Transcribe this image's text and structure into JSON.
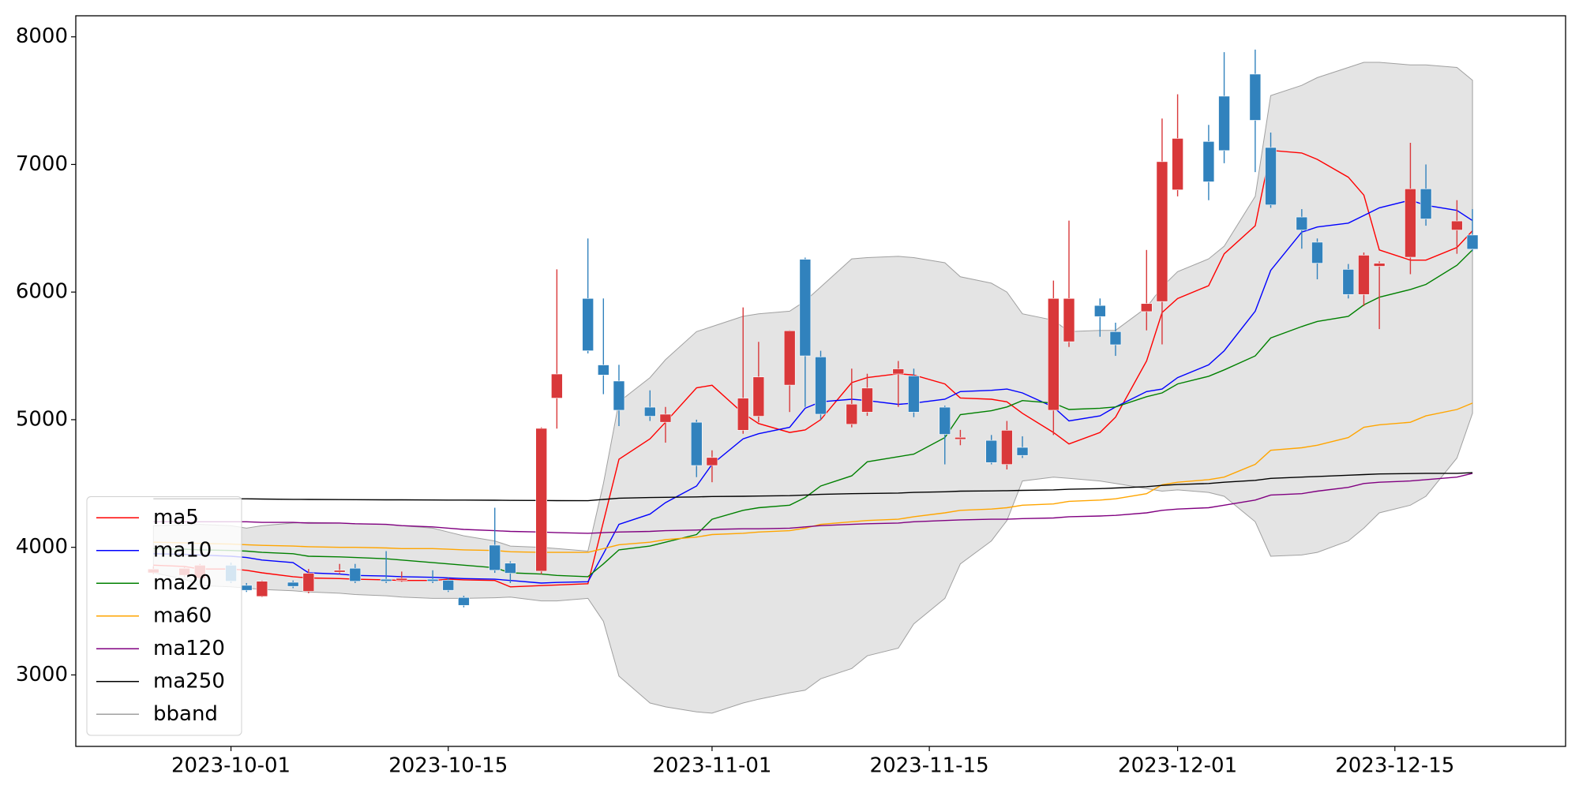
{
  "chart_data": {
    "type": "candlestick",
    "x": [
      "2023-09-26",
      "2023-09-28",
      "2023-09-29",
      "2023-10-01",
      "2023-10-02",
      "2023-10-03",
      "2023-10-05",
      "2023-10-06",
      "2023-10-08",
      "2023-10-09",
      "2023-10-11",
      "2023-10-12",
      "2023-10-14",
      "2023-10-15",
      "2023-10-16",
      "2023-10-18",
      "2023-10-19",
      "2023-10-21",
      "2023-10-22",
      "2023-10-24",
      "2023-10-25",
      "2023-10-26",
      "2023-10-28",
      "2023-10-29",
      "2023-10-31",
      "2023-11-01",
      "2023-11-03",
      "2023-11-04",
      "2023-11-06",
      "2023-11-07",
      "2023-11-08",
      "2023-11-10",
      "2023-11-11",
      "2023-11-13",
      "2023-11-14",
      "2023-11-16",
      "2023-11-17",
      "2023-11-19",
      "2023-11-20",
      "2023-11-21",
      "2023-11-23",
      "2023-11-24",
      "2023-11-26",
      "2023-11-27",
      "2023-11-29",
      "2023-11-30",
      "2023-12-01",
      "2023-12-03",
      "2023-12-04",
      "2023-12-06",
      "2023-12-07",
      "2023-12-09",
      "2023-12-10",
      "2023-12-12",
      "2023-12-13",
      "2023-12-14",
      "2023-12-16",
      "2023-12-17",
      "2023-12-19",
      "2023-12-20"
    ],
    "open": [
      3800,
      3781,
      3757,
      3860,
      3702,
      3615,
      3726,
      3655,
      3805,
      3836,
      3750,
      3742,
      3750,
      3742,
      3607,
      4017,
      3876,
      3813,
      5169,
      5950,
      5429,
      5303,
      5098,
      4980,
      4980,
      4641,
      4917,
      5027,
      5271,
      6257,
      5492,
      4964,
      5059,
      5358,
      5343,
      5098,
      4846,
      4838,
      4649,
      4783,
      5074,
      5611,
      5895,
      5690,
      5847,
      5926,
      6801,
      7180,
      7535,
      7708,
      7133,
      6588,
      6391,
      6178,
      5981,
      6202,
      6273,
      6809,
      6486,
      6447
    ],
    "high": [
      3850,
      3850,
      3870,
      3880,
      3720,
      3740,
      3740,
      3830,
      3870,
      3870,
      3970,
      3810,
      3820,
      3760,
      3620,
      4310,
      3890,
      4940,
      6178,
      6420,
      5950,
      5430,
      5230,
      5100,
      5000,
      4760,
      5880,
      5610,
      5700,
      6270,
      5540,
      5400,
      5360,
      5460,
      5400,
      5110,
      4920,
      4880,
      4990,
      4870,
      6090,
      6560,
      5950,
      5760,
      6330,
      7360,
      7550,
      7310,
      7880,
      7900,
      7250,
      6650,
      6420,
      6220,
      6310,
      6240,
      7170,
      7000,
      6720,
      6650
    ],
    "low": [
      3790,
      3770,
      3750,
      3720,
      3650,
      3610,
      3680,
      3640,
      3790,
      3720,
      3720,
      3730,
      3720,
      3650,
      3530,
      3800,
      3720,
      3790,
      4930,
      5520,
      5200,
      4950,
      4990,
      4820,
      4550,
      4510,
      4890,
      4980,
      5060,
      5100,
      5000,
      4940,
      5030,
      5100,
      5020,
      4650,
      4800,
      4650,
      4610,
      4700,
      4880,
      5570,
      5650,
      5500,
      5700,
      5590,
      6750,
      6720,
      7010,
      6940,
      6660,
      6340,
      6100,
      5950,
      5890,
      5710,
      6140,
      6520,
      6300,
      6320
    ],
    "close": [
      3830,
      3836,
      3860,
      3734,
      3663,
      3734,
      3694,
      3797,
      3820,
      3734,
      3734,
      3757,
      3734,
      3663,
      3545,
      3820,
      3797,
      4932,
      5358,
      5540,
      5350,
      5074,
      5027,
      5043,
      4641,
      4704,
      5169,
      5335,
      5697,
      5500,
      5043,
      5122,
      5248,
      5398,
      5059,
      4885,
      4862,
      4664,
      4917,
      4720,
      5950,
      5950,
      5808,
      5587,
      5910,
      7022,
      7204,
      6864,
      7109,
      7346,
      6683,
      6486,
      6226,
      5981,
      6289,
      6226,
      6809,
      6573,
      6557,
      6336
    ],
    "up_color": "#d9383a",
    "down_color": "#3182bd",
    "series": [
      {
        "name": "ma5",
        "color": "#ff0000",
        "values": [
          3860,
          3850,
          3830,
          3830,
          3820,
          3800,
          3770,
          3760,
          3755,
          3750,
          3745,
          3740,
          3740,
          3750,
          3745,
          3740,
          3690,
          3700,
          3705,
          3715,
          4200,
          4690,
          4850,
          4980,
          5250,
          5270,
          5050,
          4970,
          4900,
          4920,
          5000,
          5290,
          5330,
          5360,
          5350,
          5280,
          5170,
          5160,
          5140,
          5050,
          4900,
          4810,
          4900,
          5020,
          5460,
          5840,
          5950,
          6050,
          6300,
          6520,
          7110,
          7090,
          7040,
          6900,
          6760,
          6330,
          6250,
          6250,
          6350,
          6480
        ]
      },
      {
        "name": "ma10",
        "color": "#0000ff",
        "values": [
          3950,
          3945,
          3940,
          3930,
          3920,
          3900,
          3880,
          3800,
          3790,
          3780,
          3775,
          3770,
          3765,
          3760,
          3755,
          3750,
          3740,
          3720,
          3725,
          3730,
          3950,
          4180,
          4260,
          4350,
          4480,
          4650,
          4850,
          4890,
          4940,
          5090,
          5140,
          5160,
          5150,
          5120,
          5130,
          5160,
          5220,
          5230,
          5240,
          5210,
          5100,
          4990,
          5030,
          5100,
          5220,
          5240,
          5330,
          5430,
          5540,
          5850,
          6170,
          6470,
          6510,
          6540,
          6600,
          6660,
          6720,
          6680,
          6640,
          6560
        ]
      },
      {
        "name": "ma20",
        "color": "#008000",
        "values": [
          3990,
          3985,
          3980,
          3975,
          3970,
          3960,
          3950,
          3930,
          3925,
          3920,
          3910,
          3900,
          3880,
          3870,
          3860,
          3840,
          3800,
          3790,
          3780,
          3770,
          3870,
          3980,
          4010,
          4040,
          4100,
          4220,
          4290,
          4310,
          4330,
          4390,
          4480,
          4560,
          4670,
          4710,
          4730,
          4860,
          5040,
          5070,
          5100,
          5150,
          5130,
          5080,
          5090,
          5100,
          5180,
          5210,
          5280,
          5340,
          5390,
          5500,
          5640,
          5730,
          5770,
          5810,
          5900,
          5960,
          6020,
          6060,
          6210,
          6330
        ]
      },
      {
        "name": "ma60",
        "color": "#ffa500",
        "values": [
          4040,
          4035,
          4030,
          4025,
          4020,
          4015,
          4010,
          4005,
          4000,
          4000,
          3995,
          3990,
          3990,
          3985,
          3980,
          3975,
          3965,
          3960,
          3960,
          3960,
          3990,
          4020,
          4040,
          4060,
          4080,
          4100,
          4110,
          4120,
          4130,
          4150,
          4180,
          4200,
          4210,
          4220,
          4240,
          4270,
          4290,
          4300,
          4310,
          4330,
          4340,
          4360,
          4370,
          4380,
          4420,
          4490,
          4510,
          4530,
          4550,
          4650,
          4760,
          4780,
          4800,
          4860,
          4940,
          4960,
          4980,
          5030,
          5080,
          5130
        ]
      },
      {
        "name": "ma120",
        "color": "#800080",
        "values": [
          4200,
          4200,
          4200,
          4200,
          4200,
          4195,
          4195,
          4190,
          4190,
          4185,
          4180,
          4170,
          4160,
          4150,
          4140,
          4130,
          4125,
          4120,
          4115,
          4110,
          4115,
          4120,
          4125,
          4130,
          4135,
          4140,
          4145,
          4145,
          4150,
          4160,
          4170,
          4180,
          4185,
          4190,
          4200,
          4210,
          4215,
          4220,
          4220,
          4225,
          4230,
          4240,
          4245,
          4250,
          4270,
          4290,
          4300,
          4310,
          4330,
          4370,
          4410,
          4420,
          4440,
          4470,
          4500,
          4510,
          4520,
          4530,
          4550,
          4580
        ]
      },
      {
        "name": "ma250",
        "color": "#000000",
        "values": [
          4380,
          4380,
          4380,
          4380,
          4380,
          4378,
          4376,
          4375,
          4374,
          4373,
          4372,
          4372,
          4371,
          4370,
          4370,
          4369,
          4368,
          4367,
          4366,
          4365,
          4375,
          4385,
          4390,
          4392,
          4395,
          4398,
          4400,
          4402,
          4405,
          4410,
          4415,
          4420,
          4422,
          4425,
          4430,
          4435,
          4440,
          4442,
          4444,
          4446,
          4450,
          4455,
          4460,
          4465,
          4475,
          4485,
          4492,
          4500,
          4510,
          4525,
          4540,
          4550,
          4555,
          4565,
          4570,
          4575,
          4578,
          4580,
          4580,
          4585
        ]
      }
    ],
    "band": {
      "name": "bband",
      "color": "#a0a0a0",
      "fill": "#e4e4e4",
      "upper": [
        4170,
        4175,
        4180,
        4170,
        4150,
        4170,
        4190,
        4195,
        4190,
        4185,
        4180,
        4170,
        4150,
        4120,
        4090,
        4050,
        4010,
        4000,
        3990,
        3970,
        4500,
        5140,
        5330,
        5470,
        5690,
        5730,
        5810,
        5830,
        5850,
        5930,
        6040,
        6260,
        6270,
        6280,
        6270,
        6230,
        6120,
        6070,
        6000,
        5830,
        5780,
        5690,
        5700,
        5700,
        5880,
        6040,
        6160,
        6260,
        6360,
        6750,
        7540,
        7620,
        7680,
        7760,
        7800,
        7800,
        7780,
        7780,
        7760,
        7660
      ],
      "lower": [
        3800,
        3750,
        3700,
        3690,
        3680,
        3670,
        3660,
        3650,
        3640,
        3630,
        3620,
        3610,
        3600,
        3600,
        3600,
        3605,
        3610,
        3580,
        3580,
        3600,
        3420,
        2990,
        2780,
        2750,
        2710,
        2700,
        2780,
        2810,
        2860,
        2880,
        2970,
        3050,
        3150,
        3210,
        3400,
        3600,
        3870,
        4050,
        4210,
        4520,
        4550,
        4540,
        4520,
        4500,
        4460,
        4440,
        4450,
        4430,
        4400,
        4200,
        3930,
        3940,
        3960,
        4050,
        4150,
        4270,
        4330,
        4400,
        4700,
        5050
      ]
    },
    "xlim": [
      "2023-09-21",
      "2023-12-26"
    ],
    "ylim": [
      2440,
      8165
    ],
    "xticks": [
      "2023-10-01",
      "2023-10-15",
      "2023-11-01",
      "2023-11-15",
      "2023-12-01",
      "2023-12-15"
    ],
    "yticks": [
      3000,
      4000,
      5000,
      6000,
      7000,
      8000
    ],
    "legend": "lower left"
  }
}
